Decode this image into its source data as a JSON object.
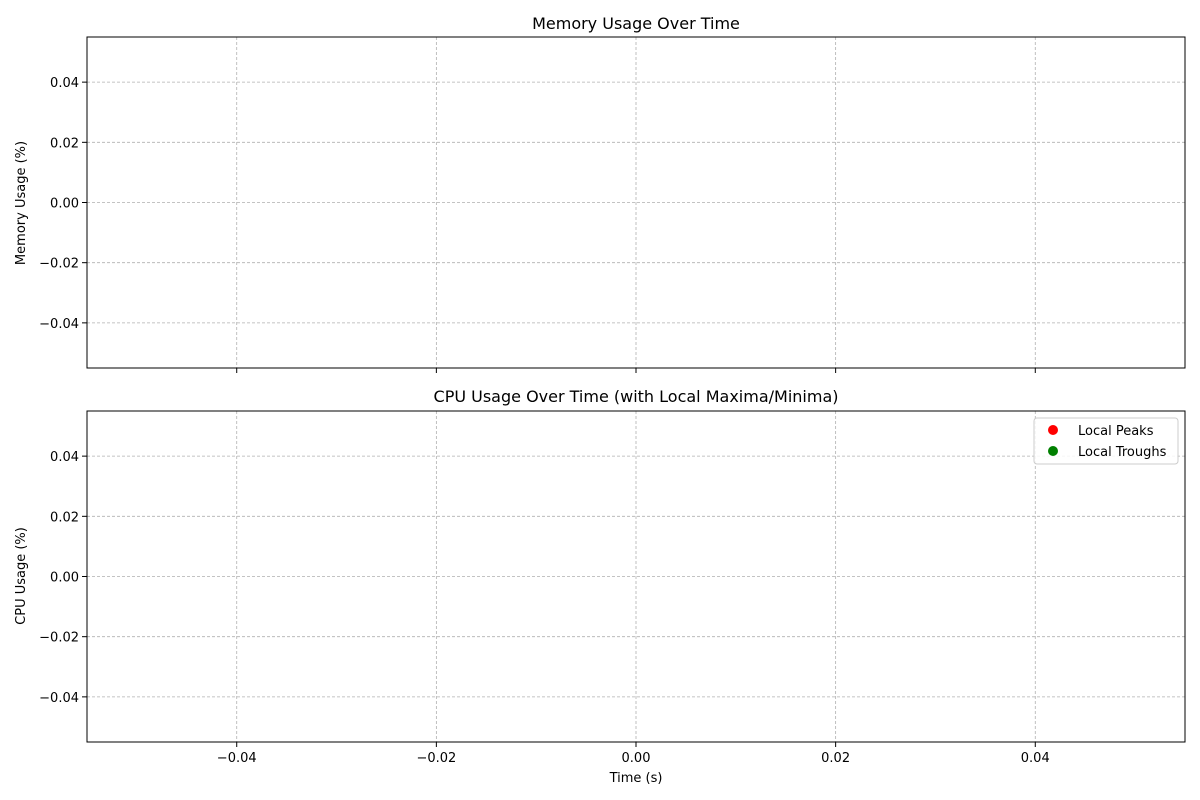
{
  "chart_data": [
    {
      "type": "line",
      "title": "Memory Usage Over Time",
      "xlabel": "",
      "ylabel": "Memory Usage (%)",
      "xlim": [
        -0.055,
        0.055
      ],
      "ylim": [
        -0.055,
        0.055
      ],
      "xticks": [
        -0.04,
        -0.02,
        0.0,
        0.02,
        0.04
      ],
      "xtick_labels": [],
      "yticks": [
        -0.04,
        -0.02,
        0.0,
        0.02,
        0.04
      ],
      "ytick_labels": [
        "−0.04",
        "−0.02",
        "0.00",
        "0.02",
        "0.04"
      ],
      "grid": true,
      "series": []
    },
    {
      "type": "scatter",
      "title": "CPU Usage Over Time (with Local Maxima/Minima)",
      "xlabel": "Time (s)",
      "ylabel": "CPU Usage (%)",
      "xlim": [
        -0.055,
        0.055
      ],
      "ylim": [
        -0.055,
        0.055
      ],
      "xticks": [
        -0.04,
        -0.02,
        0.0,
        0.02,
        0.04
      ],
      "xtick_labels": [
        "−0.04",
        "−0.02",
        "0.00",
        "0.02",
        "0.04"
      ],
      "yticks": [
        -0.04,
        -0.02,
        0.0,
        0.02,
        0.04
      ],
      "ytick_labels": [
        "−0.04",
        "−0.02",
        "0.00",
        "0.02",
        "0.04"
      ],
      "grid": true,
      "legend": {
        "placement": "top-right",
        "entries": [
          {
            "label": "Local Peaks",
            "color": "#ff0000",
            "marker": "circle"
          },
          {
            "label": "Local Troughs",
            "color": "#008000",
            "marker": "circle"
          }
        ]
      },
      "series": [
        {
          "name": "Local Peaks",
          "color": "#ff0000",
          "x": [],
          "y": []
        },
        {
          "name": "Local Troughs",
          "color": "#008000",
          "x": [],
          "y": []
        }
      ]
    }
  ]
}
